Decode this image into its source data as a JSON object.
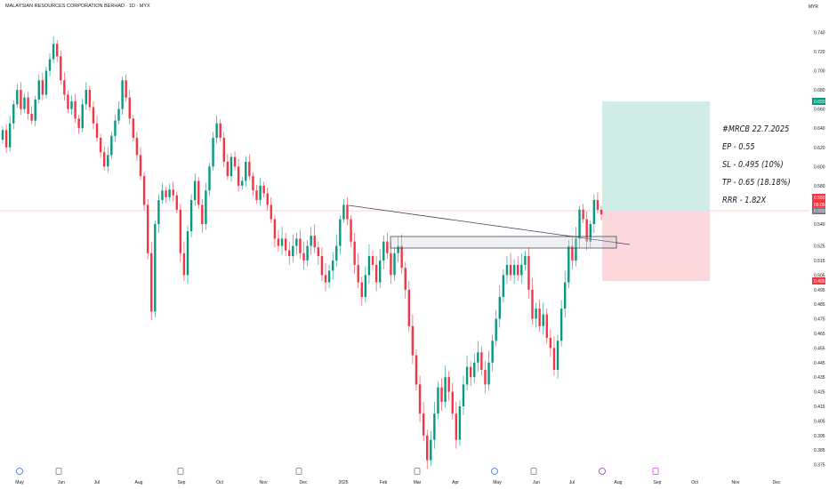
{
  "title": "MALAYSIAN RESOURCES CORPORATION BERHAD · 1D · MYX",
  "currency": "MYR",
  "colors": {
    "up": "#089981",
    "down": "#f23645",
    "bg": "#ffffff",
    "profit_zone": "#cfece6",
    "loss_zone": "#fcd7db"
  },
  "notes": [
    "#MRCB 22.7.2025",
    "EP - 0.55",
    "SL - 0.495 (10%)",
    "TP - 0.65 (18.18%)",
    "RRR - 1.82X"
  ],
  "chart_data": {
    "type": "candlestick",
    "y_ticks": [
      "0.740",
      "0.720",
      "0.700",
      "0.680",
      "0.660",
      "0.640",
      "0.620",
      "0.600",
      "0.580",
      "0.560",
      "0.540",
      "0.525",
      "0.515",
      "0.505",
      "0.495",
      "0.485",
      "0.475",
      "0.465",
      "0.455",
      "0.445",
      "0.435",
      "0.425",
      "0.415",
      "0.405",
      "0.395",
      "0.385",
      "0.375"
    ],
    "x_ticks": [
      "May",
      "Jun",
      "Jul",
      "Aug",
      "Sep",
      "Oct",
      "Nov",
      "Dec",
      "2025",
      "Feb",
      "Mar",
      "Apr",
      "May",
      "Jun",
      "Jul",
      "Aug",
      "Sep",
      "Oct",
      "Nov",
      "Dec"
    ],
    "price_labels": [
      {
        "text": "0.650",
        "color": "#089981"
      },
      {
        "text": "0.550",
        "color": "#f23645"
      },
      {
        "text": "05:05:34",
        "color": "#f23645"
      },
      {
        "text": "0.550",
        "color": "#787b86"
      },
      {
        "text": "0.495",
        "color": "#f23645"
      }
    ],
    "levels": {
      "entry": 0.55,
      "stop_loss": 0.495,
      "take_profit": 0.65
    },
    "series": [
      {
        "o": 0.628,
        "c": 0.638
      },
      {
        "o": 0.638,
        "c": 0.62
      },
      {
        "o": 0.62,
        "c": 0.645
      },
      {
        "o": 0.645,
        "c": 0.665
      },
      {
        "o": 0.665,
        "c": 0.68
      },
      {
        "o": 0.68,
        "c": 0.66
      },
      {
        "o": 0.66,
        "c": 0.672
      },
      {
        "o": 0.672,
        "c": 0.655
      },
      {
        "o": 0.655,
        "c": 0.648
      },
      {
        "o": 0.648,
        "c": 0.67
      },
      {
        "o": 0.67,
        "c": 0.69
      },
      {
        "o": 0.69,
        "c": 0.675
      },
      {
        "o": 0.675,
        "c": 0.7
      },
      {
        "o": 0.7,
        "c": 0.712
      },
      {
        "o": 0.712,
        "c": 0.728
      },
      {
        "o": 0.728,
        "c": 0.715
      },
      {
        "o": 0.715,
        "c": 0.69
      },
      {
        "o": 0.69,
        "c": 0.675
      },
      {
        "o": 0.675,
        "c": 0.66
      },
      {
        "o": 0.66,
        "c": 0.668
      },
      {
        "o": 0.668,
        "c": 0.65
      },
      {
        "o": 0.65,
        "c": 0.64
      },
      {
        "o": 0.64,
        "c": 0.665
      },
      {
        "o": 0.665,
        "c": 0.68
      },
      {
        "o": 0.68,
        "c": 0.662
      },
      {
        "o": 0.662,
        "c": 0.645
      },
      {
        "o": 0.645,
        "c": 0.63
      },
      {
        "o": 0.63,
        "c": 0.615
      },
      {
        "o": 0.615,
        "c": 0.6
      },
      {
        "o": 0.6,
        "c": 0.612
      },
      {
        "o": 0.612,
        "c": 0.632
      },
      {
        "o": 0.632,
        "c": 0.648
      },
      {
        "o": 0.648,
        "c": 0.66
      },
      {
        "o": 0.66,
        "c": 0.69
      },
      {
        "o": 0.69,
        "c": 0.672
      },
      {
        "o": 0.672,
        "c": 0.65
      },
      {
        "o": 0.65,
        "c": 0.63
      },
      {
        "o": 0.63,
        "c": 0.612
      },
      {
        "o": 0.612,
        "c": 0.59
      },
      {
        "o": 0.59,
        "c": 0.56
      },
      {
        "o": 0.56,
        "c": 0.52
      },
      {
        "o": 0.52,
        "c": 0.48
      },
      {
        "o": 0.48,
        "c": 0.54
      },
      {
        "o": 0.54,
        "c": 0.565
      },
      {
        "o": 0.565,
        "c": 0.575
      },
      {
        "o": 0.575,
        "c": 0.568
      },
      {
        "o": 0.568,
        "c": 0.576
      },
      {
        "o": 0.576,
        "c": 0.57
      },
      {
        "o": 0.57,
        "c": 0.555
      },
      {
        "o": 0.555,
        "c": 0.52
      },
      {
        "o": 0.52,
        "c": 0.505
      },
      {
        "o": 0.505,
        "c": 0.535
      },
      {
        "o": 0.535,
        "c": 0.565
      },
      {
        "o": 0.565,
        "c": 0.585
      },
      {
        "o": 0.585,
        "c": 0.56
      },
      {
        "o": 0.56,
        "c": 0.54
      },
      {
        "o": 0.54,
        "c": 0.575
      },
      {
        "o": 0.575,
        "c": 0.6
      },
      {
        "o": 0.6,
        "c": 0.63
      },
      {
        "o": 0.63,
        "c": 0.645
      },
      {
        "o": 0.645,
        "c": 0.63
      },
      {
        "o": 0.63,
        "c": 0.605
      },
      {
        "o": 0.605,
        "c": 0.59
      },
      {
        "o": 0.59,
        "c": 0.61
      },
      {
        "o": 0.61,
        "c": 0.6
      },
      {
        "o": 0.6,
        "c": 0.58
      },
      {
        "o": 0.58,
        "c": 0.585
      },
      {
        "o": 0.585,
        "c": 0.605
      },
      {
        "o": 0.605,
        "c": 0.59
      },
      {
        "o": 0.59,
        "c": 0.575
      },
      {
        "o": 0.575,
        "c": 0.565
      },
      {
        "o": 0.565,
        "c": 0.58
      },
      {
        "o": 0.58,
        "c": 0.572
      },
      {
        "o": 0.572,
        "c": 0.56
      },
      {
        "o": 0.56,
        "c": 0.545
      },
      {
        "o": 0.545,
        "c": 0.53
      },
      {
        "o": 0.53,
        "c": 0.525
      },
      {
        "o": 0.525,
        "c": 0.53
      },
      {
        "o": 0.53,
        "c": 0.522
      },
      {
        "o": 0.522,
        "c": 0.518
      },
      {
        "o": 0.518,
        "c": 0.525
      },
      {
        "o": 0.525,
        "c": 0.53
      },
      {
        "o": 0.53,
        "c": 0.52
      },
      {
        "o": 0.52,
        "c": 0.515
      },
      {
        "o": 0.515,
        "c": 0.525
      },
      {
        "o": 0.525,
        "c": 0.532
      },
      {
        "o": 0.532,
        "c": 0.524
      },
      {
        "o": 0.524,
        "c": 0.518
      },
      {
        "o": 0.518,
        "c": 0.505
      },
      {
        "o": 0.505,
        "c": 0.5
      },
      {
        "o": 0.5,
        "c": 0.508
      },
      {
        "o": 0.508,
        "c": 0.515
      },
      {
        "o": 0.515,
        "c": 0.525
      },
      {
        "o": 0.525,
        "c": 0.545
      },
      {
        "o": 0.545,
        "c": 0.56
      },
      {
        "o": 0.56,
        "c": 0.545
      },
      {
        "o": 0.545,
        "c": 0.528
      },
      {
        "o": 0.528,
        "c": 0.512
      },
      {
        "o": 0.512,
        "c": 0.5
      },
      {
        "o": 0.5,
        "c": 0.49
      },
      {
        "o": 0.49,
        "c": 0.505
      },
      {
        "o": 0.505,
        "c": 0.518
      },
      {
        "o": 0.518,
        "c": 0.512
      },
      {
        "o": 0.512,
        "c": 0.5
      },
      {
        "o": 0.5,
        "c": 0.515
      },
      {
        "o": 0.515,
        "c": 0.528
      },
      {
        "o": 0.528,
        "c": 0.52
      },
      {
        "o": 0.52,
        "c": 0.505
      },
      {
        "o": 0.505,
        "c": 0.52
      },
      {
        "o": 0.52,
        "c": 0.525
      },
      {
        "o": 0.525,
        "c": 0.51
      },
      {
        "o": 0.51,
        "c": 0.495
      },
      {
        "o": 0.495,
        "c": 0.47
      },
      {
        "o": 0.47,
        "c": 0.45
      },
      {
        "o": 0.45,
        "c": 0.43
      },
      {
        "o": 0.43,
        "c": 0.41
      },
      {
        "o": 0.41,
        "c": 0.395
      },
      {
        "o": 0.395,
        "c": 0.378
      },
      {
        "o": 0.378,
        "c": 0.392
      },
      {
        "o": 0.392,
        "c": 0.41
      },
      {
        "o": 0.41,
        "c": 0.428
      },
      {
        "o": 0.428,
        "c": 0.418
      },
      {
        "o": 0.418,
        "c": 0.435
      },
      {
        "o": 0.435,
        "c": 0.425
      },
      {
        "o": 0.425,
        "c": 0.41
      },
      {
        "o": 0.41,
        "c": 0.392
      },
      {
        "o": 0.392,
        "c": 0.415
      },
      {
        "o": 0.415,
        "c": 0.43
      },
      {
        "o": 0.43,
        "c": 0.442
      },
      {
        "o": 0.442,
        "c": 0.435
      },
      {
        "o": 0.435,
        "c": 0.445
      },
      {
        "o": 0.445,
        "c": 0.452
      },
      {
        "o": 0.452,
        "c": 0.44
      },
      {
        "o": 0.44,
        "c": 0.43
      },
      {
        "o": 0.43,
        "c": 0.445
      },
      {
        "o": 0.445,
        "c": 0.46
      },
      {
        "o": 0.46,
        "c": 0.475
      },
      {
        "o": 0.475,
        "c": 0.49
      },
      {
        "o": 0.49,
        "c": 0.505
      },
      {
        "o": 0.505,
        "c": 0.512
      },
      {
        "o": 0.512,
        "c": 0.505
      },
      {
        "o": 0.505,
        "c": 0.512
      },
      {
        "o": 0.512,
        "c": 0.505
      },
      {
        "o": 0.505,
        "c": 0.512
      },
      {
        "o": 0.512,
        "c": 0.518
      },
      {
        "o": 0.518,
        "c": 0.495
      },
      {
        "o": 0.495,
        "c": 0.475
      },
      {
        "o": 0.475,
        "c": 0.482
      },
      {
        "o": 0.482,
        "c": 0.47
      },
      {
        "o": 0.47,
        "c": 0.478
      },
      {
        "o": 0.478,
        "c": 0.462
      },
      {
        "o": 0.462,
        "c": 0.455
      },
      {
        "o": 0.455,
        "c": 0.44
      },
      {
        "o": 0.44,
        "c": 0.46
      },
      {
        "o": 0.46,
        "c": 0.482
      },
      {
        "o": 0.482,
        "c": 0.5
      },
      {
        "o": 0.5,
        "c": 0.525
      },
      {
        "o": 0.525,
        "c": 0.515
      },
      {
        "o": 0.515,
        "c": 0.53
      },
      {
        "o": 0.53,
        "c": 0.555
      },
      {
        "o": 0.555,
        "c": 0.545
      },
      {
        "o": 0.545,
        "c": 0.528
      },
      {
        "o": 0.528,
        "c": 0.54
      },
      {
        "o": 0.54,
        "c": 0.565
      },
      {
        "o": 0.565,
        "c": 0.555
      },
      {
        "o": 0.555,
        "c": 0.55
      }
    ]
  }
}
